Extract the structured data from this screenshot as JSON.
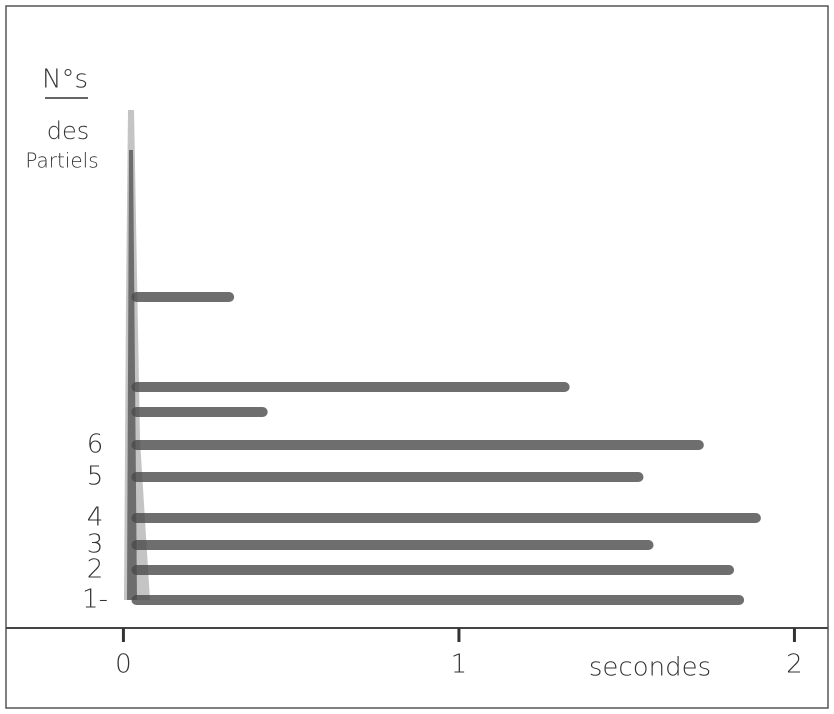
{
  "chart_data": {
    "type": "range",
    "ylabel": [
      "N°s",
      "des",
      "Partiels"
    ],
    "xlabel": "secondes",
    "categories": [
      "1-",
      "2",
      "3",
      "4",
      "5",
      "6",
      null,
      null,
      null
    ],
    "values": [
      1.85,
      1.82,
      1.58,
      1.9,
      1.55,
      1.73,
      0.43,
      1.33,
      0.33
    ],
    "color": "#4a4a4a",
    "xlim": [
      -0.35,
      2.1
    ],
    "xticks": [
      0,
      1,
      2
    ]
  }
}
